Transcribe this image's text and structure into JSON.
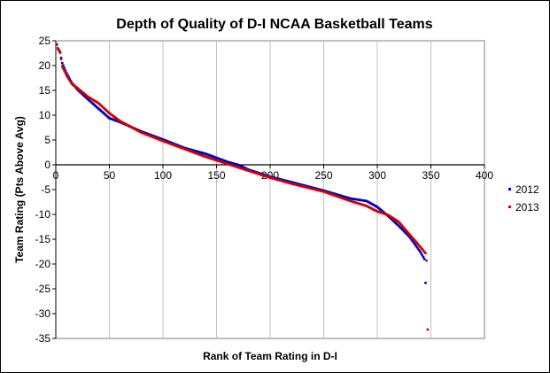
{
  "chart_data": {
    "type": "scatter",
    "title": "Depth of Quality of D-I NCAA Basketball Teams",
    "xlabel": "Rank of Team Rating in D-I",
    "ylabel": "Team Rating (Pts Above Avg)",
    "xlim": [
      0,
      400
    ],
    "ylim": [
      -35,
      25
    ],
    "x_ticks": [
      "0",
      "50",
      "100",
      "150",
      "200",
      "250",
      "300",
      "350",
      "400"
    ],
    "y_ticks": [
      "25",
      "20",
      "15",
      "10",
      "5",
      "0",
      "-5",
      "-10",
      "-15",
      "-20",
      "-25",
      "-30",
      "-35"
    ],
    "grid": "vertical",
    "legend_position": "right",
    "series": [
      {
        "name": "2012",
        "color": "#0000c0",
        "count": 345,
        "curve": [
          [
            1,
            24.2
          ],
          [
            2,
            23.4
          ],
          [
            4,
            22.6
          ],
          [
            6,
            20.5
          ],
          [
            10,
            18.5
          ],
          [
            15,
            16.5
          ],
          [
            20,
            15.2
          ],
          [
            30,
            13.2
          ],
          [
            40,
            11.3
          ],
          [
            50,
            9.4
          ],
          [
            60,
            8.6
          ],
          [
            80,
            6.7
          ],
          [
            100,
            5.1
          ],
          [
            120,
            3.4
          ],
          [
            140,
            2.2
          ],
          [
            160,
            0.6
          ],
          [
            170,
            0.0
          ],
          [
            180,
            -1.0
          ],
          [
            200,
            -2.4
          ],
          [
            220,
            -3.5
          ],
          [
            250,
            -5.2
          ],
          [
            275,
            -6.8
          ],
          [
            290,
            -7.3
          ],
          [
            300,
            -8.5
          ],
          [
            310,
            -10.3
          ],
          [
            320,
            -12.3
          ],
          [
            330,
            -14.5
          ],
          [
            340,
            -17.5
          ],
          [
            344,
            -19.0
          ],
          [
            345,
            -23.8
          ]
        ]
      },
      {
        "name": "2013",
        "color": "#d00000",
        "count": 347,
        "curve": [
          [
            1,
            24.3
          ],
          [
            2,
            23.5
          ],
          [
            4,
            22.8
          ],
          [
            6,
            19.8
          ],
          [
            10,
            18.0
          ],
          [
            15,
            16.3
          ],
          [
            20,
            15.5
          ],
          [
            30,
            13.7
          ],
          [
            40,
            12.4
          ],
          [
            50,
            10.4
          ],
          [
            60,
            8.8
          ],
          [
            80,
            6.5
          ],
          [
            100,
            4.8
          ],
          [
            120,
            3.2
          ],
          [
            140,
            1.6
          ],
          [
            160,
            0.2
          ],
          [
            170,
            -0.5
          ],
          [
            180,
            -1.2
          ],
          [
            200,
            -2.6
          ],
          [
            220,
            -3.8
          ],
          [
            250,
            -5.4
          ],
          [
            275,
            -7.3
          ],
          [
            290,
            -8.3
          ],
          [
            300,
            -9.4
          ],
          [
            310,
            -10.1
          ],
          [
            320,
            -11.5
          ],
          [
            330,
            -14.0
          ],
          [
            340,
            -16.5
          ],
          [
            345,
            -17.8
          ],
          [
            346,
            -19.3
          ],
          [
            347,
            -33.2
          ]
        ]
      }
    ]
  }
}
